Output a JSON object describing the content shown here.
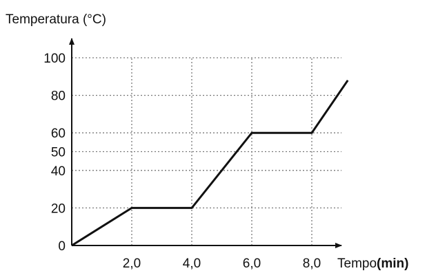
{
  "chart_data": {
    "type": "line",
    "ylabel": "Temperatura (°C)",
    "xlabel_main": "Tempo",
    "xlabel_unit": "(min)",
    "x_ticks": [
      2.0,
      4.0,
      6.0,
      8.0
    ],
    "x_tick_labels": [
      "2,0",
      "4,0",
      "6,0",
      "8,0"
    ],
    "y_ticks": [
      0,
      20,
      40,
      50,
      60,
      80,
      100
    ],
    "y_tick_labels": [
      "0",
      "20",
      "40",
      "50",
      "60",
      "80",
      "100"
    ],
    "y_gridlines": [
      20,
      40,
      50,
      60,
      80,
      100
    ],
    "x_gridlines": [
      2.0,
      4.0,
      6.0,
      8.0
    ],
    "grid": "dotted",
    "xlim": [
      0,
      9.2
    ],
    "ylim": [
      0,
      100
    ],
    "series": [
      {
        "x": [
          0,
          2.0,
          4.0,
          6.0,
          8.0,
          9.2
        ],
        "y": [
          0,
          20,
          20,
          60,
          60,
          88
        ]
      }
    ],
    "colors": {
      "line": "#111111",
      "grid": "#777777",
      "axis": "#111111"
    }
  }
}
